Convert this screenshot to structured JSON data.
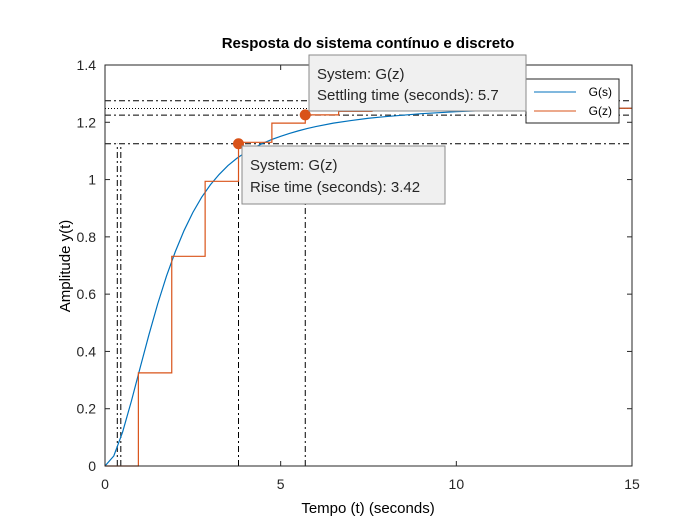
{
  "chart_data": {
    "type": "line",
    "title": "Resposta do sistema contínuo e discreto",
    "xlabel": "Tempo (t) (seconds)",
    "ylabel": "Amplitude y(t)",
    "xlim": [
      0,
      15
    ],
    "ylim": [
      0,
      1.4
    ],
    "x_ticks": [
      0,
      5,
      10,
      15
    ],
    "x_tick_labels": [
      "0",
      "5",
      "10",
      "15"
    ],
    "y_ticks": [
      0,
      0.2,
      0.4,
      0.6,
      0.8,
      1.0,
      1.2,
      1.4
    ],
    "y_tick_labels": [
      "0",
      "0.2",
      "0.4",
      "0.6",
      "0.8",
      "1",
      "1.2",
      "1.4"
    ],
    "grid": false,
    "legend_position": "top-right",
    "series": [
      {
        "name": "G(s)",
        "color": "#0072BD",
        "x": [
          0,
          0.25,
          0.5,
          0.75,
          1,
          1.25,
          1.5,
          1.75,
          2,
          2.25,
          2.5,
          2.75,
          3,
          3.25,
          3.5,
          3.75,
          4,
          4.25,
          4.5,
          4.75,
          5,
          5.25,
          5.5,
          5.75,
          6,
          6.5,
          7,
          7.5,
          8,
          9,
          10,
          11,
          12,
          13,
          14,
          15
        ],
        "y": [
          0,
          0.035,
          0.118,
          0.226,
          0.343,
          0.458,
          0.566,
          0.663,
          0.748,
          0.822,
          0.885,
          0.938,
          0.982,
          1.018,
          1.049,
          1.074,
          1.095,
          1.112,
          1.127,
          1.14,
          1.151,
          1.161,
          1.17,
          1.178,
          1.185,
          1.197,
          1.206,
          1.214,
          1.22,
          1.23,
          1.237,
          1.242,
          1.245,
          1.247,
          1.248,
          1.249
        ]
      },
      {
        "name": "G(z)",
        "color": "#D95319",
        "step": true,
        "x": [
          0,
          0.95,
          1.9,
          2.85,
          3.8,
          4.75,
          5.7,
          6.65,
          7.6,
          8.55,
          9.5,
          10.45,
          11.4,
          12.35,
          13.3,
          14.25,
          15
        ],
        "y": [
          0,
          0.325,
          0.732,
          0.994,
          1.13,
          1.197,
          1.226,
          1.238,
          1.243,
          1.246,
          1.247,
          1.248,
          1.248,
          1.249,
          1.249,
          1.249,
          1.249
        ]
      }
    ],
    "reference_lines": {
      "horizontal": [
        1.275,
        1.225,
        1.248,
        1.125
      ],
      "vertical": [
        0.35,
        0.45,
        3.8,
        5.7
      ]
    },
    "datatips": [
      {
        "series": "G(z)",
        "x": 3.8,
        "y": 1.125,
        "lines": [
          "System: G(z)",
          "Rise time (seconds): 3.42"
        ]
      },
      {
        "series": "G(z)",
        "x": 5.7,
        "y": 1.226,
        "lines": [
          "System: G(z)",
          "Settling time (seconds): 5.7"
        ]
      }
    ]
  }
}
